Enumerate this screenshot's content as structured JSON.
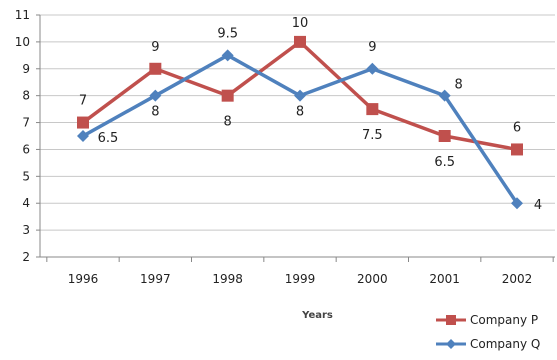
{
  "chart_data": {
    "type": "line",
    "title": "",
    "xlabel": "Years",
    "ylabel": "",
    "categories": [
      "1996",
      "1997",
      "1998",
      "1999",
      "2000",
      "2001",
      "2002"
    ],
    "ylim": [
      2,
      11
    ],
    "yticks": [
      "2",
      "3",
      "4",
      "5",
      "6",
      "7",
      "8",
      "9",
      "10",
      "11"
    ],
    "grid": true,
    "legend_position": "bottom-right",
    "series": [
      {
        "name": "Company P",
        "color": "#c0504d",
        "marker": "square",
        "values": [
          7,
          9,
          8,
          10,
          7.5,
          6.5,
          6
        ],
        "labels": [
          "7",
          "9",
          "8",
          "10",
          "7.5",
          "6.5",
          "6"
        ]
      },
      {
        "name": "Company Q",
        "color": "#4f81bd",
        "marker": "diamond",
        "values": [
          6.5,
          8,
          9.5,
          8,
          9,
          8,
          4
        ],
        "labels": [
          "6.5",
          "8",
          "9.5",
          "8",
          "9",
          "8",
          "4"
        ]
      }
    ]
  }
}
